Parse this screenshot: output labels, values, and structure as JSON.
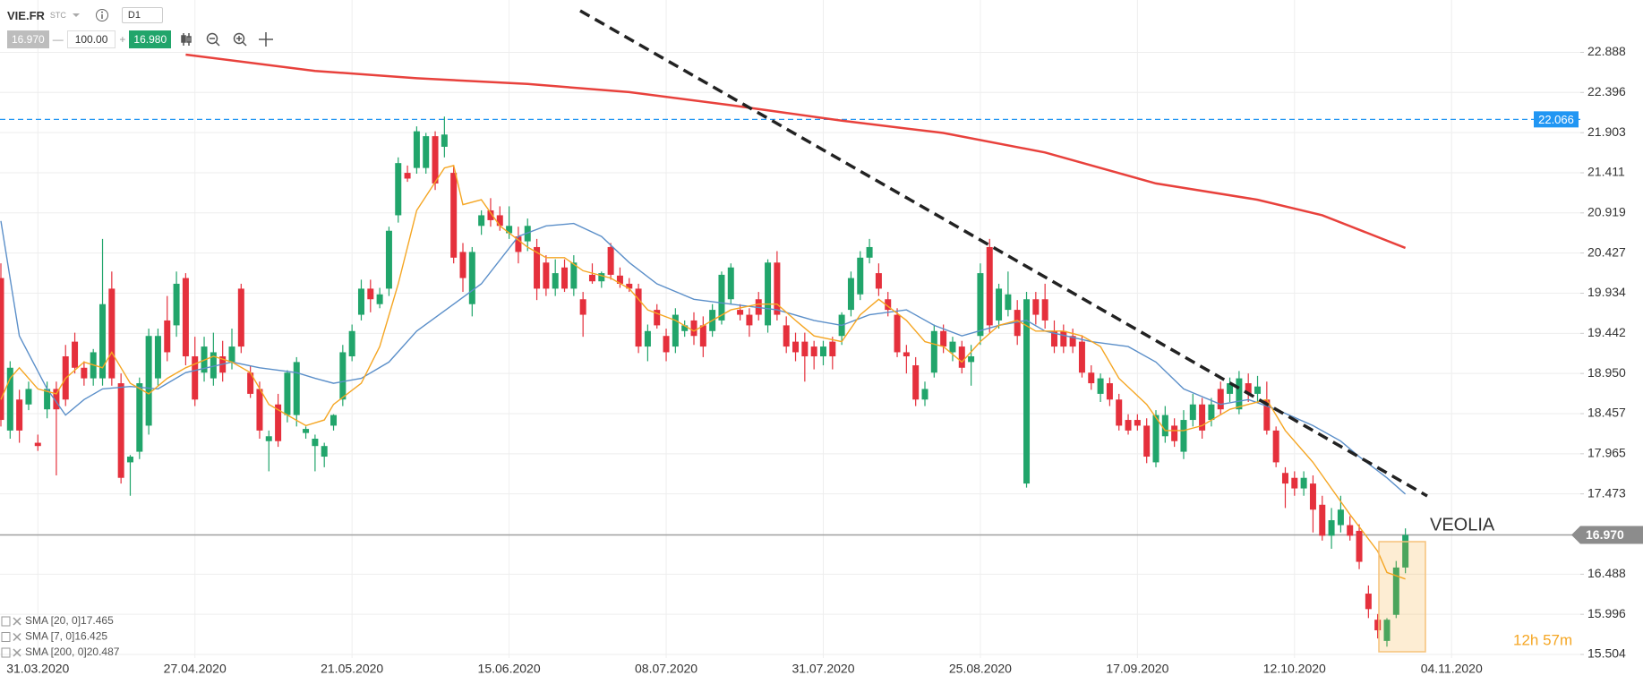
{
  "toolbar": {
    "symbol": "VIE.FR",
    "market": "STC",
    "interval": "D1",
    "bid": "16.970",
    "separator": "—",
    "volume": "100.00",
    "plus": "+",
    "ask": "16.980"
  },
  "chart_data": {
    "type": "candlestick",
    "title": "VEOLIA",
    "countdown": "12h 57m",
    "up_color": "#21a56b",
    "down_color": "#e5303c",
    "grid": true,
    "ylim": [
      15.46,
      23.53
    ],
    "yticks": [
      22.888,
      22.396,
      21.903,
      21.411,
      20.919,
      20.427,
      19.934,
      19.442,
      {
        "value": 18.95,
        "label": "18.950"
      },
      18.457,
      17.965,
      17.473,
      16.488,
      15.996,
      15.504
    ],
    "hlines": [
      {
        "value": 22.066,
        "color": "#2196f3"
      }
    ],
    "last_price": {
      "value": 16.97,
      "label": "16.970",
      "color": "#8c8c8c"
    },
    "categories": [
      null,
      null,
      null,
      null,
      "31.03.2020",
      null,
      null,
      null,
      null,
      null,
      null,
      null,
      null,
      null,
      null,
      null,
      null,
      null,
      null,
      null,
      null,
      "27.04.2020",
      null,
      null,
      null,
      null,
      null,
      null,
      null,
      null,
      null,
      null,
      null,
      null,
      null,
      null,
      null,
      null,
      "21.05.2020",
      null,
      null,
      null,
      null,
      null,
      null,
      null,
      null,
      null,
      null,
      null,
      null,
      null,
      null,
      null,
      null,
      "15.06.2020",
      null,
      null,
      null,
      null,
      null,
      null,
      null,
      null,
      null,
      null,
      null,
      null,
      null,
      null,
      null,
      null,
      "08.07.2020",
      null,
      null,
      null,
      null,
      null,
      null,
      null,
      null,
      null,
      null,
      null,
      null,
      null,
      null,
      null,
      null,
      "31.07.2020",
      null,
      null,
      null,
      null,
      null,
      null,
      null,
      null,
      null,
      null,
      null,
      null,
      null,
      null,
      null,
      null,
      "25.08.2020",
      null,
      null,
      null,
      null,
      null,
      null,
      null,
      null,
      null,
      null,
      null,
      null,
      null,
      null,
      null,
      null,
      "17.09.2020",
      null,
      null,
      null,
      null,
      null,
      null,
      null,
      null,
      null,
      null,
      null,
      null,
      null,
      null,
      null,
      null,
      "12.10.2020",
      null,
      null,
      null,
      null,
      null,
      null,
      null,
      null,
      null,
      null,
      null,
      null,
      null,
      null,
      null,
      null,
      "04.11.2020"
    ],
    "open": [
      20.12,
      18.25,
      18.63,
      18.57,
      18.1,
      18.51,
      18.76,
      19.16,
      19.34,
      19.02,
      18.89,
      18.89,
      19.99,
      18.83,
      17.86,
      17.99,
      18.31,
      18.89,
      19.6,
      19.54,
      20.12,
      19.16,
      18.96,
      18.89,
      19.16,
      19.09,
      19.99,
      18.96,
      18.76,
      18.12,
      18.57,
      18.44,
      18.44,
      18.22,
      18.06,
      17.93,
      18.31,
      18.63,
      19.16,
      19.67,
      19.99,
      19.8,
      19.99,
      20.89,
      21.41,
      21.47,
      21.47,
      21.86,
      21.73,
      21.41,
      20.44,
      19.8,
      20.76,
      20.95,
      20.89,
      20.67,
      20.63,
      20.57,
      20.5,
      20.31,
      19.99,
      20.25,
      19.99,
      19.86,
      20.16,
      20.08,
      20.5,
      20.15,
      20.05,
      19.99,
      19.28,
      19.73,
      19.41,
      19.28,
      19.47,
      19.6,
      19.54,
      19.47,
      19.6,
      19.86,
      19.73,
      19.67,
      19.86,
      19.54,
      20.31,
      19.54,
      19.34,
      19.34,
      19.28,
      19.16,
      19.34,
      19.41,
      19.73,
      19.92,
      20.37,
      20.18,
      19.86,
      19.67,
      19.21,
      19.05,
      18.63,
      18.96,
      19.47,
      19.21,
      19.28,
      19.09,
      19.41,
      20.5,
      19.6,
      19.73,
      19.73,
      17.6,
      19.86,
      19.86,
      19.47,
      19.47,
      19.41,
      19.34,
      18.96,
      18.7,
      18.83,
      18.63,
      18.38,
      18.38,
      18.31,
      17.86,
      18.18,
      18.31,
      17.99,
      18.38,
      18.57,
      18.38,
      18.76,
      18.7,
      18.51,
      18.83,
      18.7,
      18.63,
      18.25,
      17.73,
      17.67,
      17.54,
      17.6,
      17.34,
      16.96,
      17.09,
      17.09,
      17.02,
      16.25,
      15.93,
      15.67,
      15.99,
      16.57,
      null,
      null,
      null,
      null,
      null
    ],
    "high": [
      20.3,
      19.1,
      18.75,
      18.85,
      18.2,
      18.85,
      18.85,
      19.3,
      19.45,
      19.1,
      19.25,
      20.6,
      20.2,
      18.95,
      17.95,
      18.9,
      19.5,
      19.5,
      19.9,
      20.2,
      20.18,
      19.4,
      19.4,
      19.45,
      19.35,
      19.5,
      20.05,
      19.05,
      18.85,
      18.25,
      18.7,
      18.99,
      19.15,
      18.3,
      18.2,
      18.1,
      18.45,
      19.3,
      19.55,
      20.1,
      20.1,
      20.0,
      20.75,
      21.6,
      21.5,
      21.98,
      21.9,
      21.92,
      22.1,
      21.5,
      20.55,
      20.5,
      20.95,
      21.1,
      21.0,
      21.0,
      20.75,
      20.85,
      20.6,
      20.4,
      20.35,
      20.35,
      20.4,
      19.95,
      20.3,
      20.2,
      20.55,
      20.25,
      20.12,
      20.05,
      19.55,
      19.8,
      19.5,
      19.75,
      19.6,
      19.7,
      19.65,
      19.8,
      20.2,
      20.3,
      19.8,
      19.75,
      19.95,
      20.35,
      20.45,
      19.65,
      19.45,
      19.45,
      19.35,
      19.35,
      19.4,
      19.7,
      20.2,
      20.45,
      20.6,
      20.3,
      19.95,
      19.75,
      19.3,
      19.15,
      18.85,
      19.55,
      19.55,
      19.4,
      19.35,
      19.3,
      20.3,
      20.6,
      20.05,
      20.2,
      19.85,
      19.95,
      19.95,
      20.05,
      19.6,
      19.55,
      19.5,
      19.42,
      19.05,
      18.95,
      18.9,
      18.7,
      18.45,
      18.45,
      18.4,
      18.5,
      18.55,
      18.4,
      18.5,
      18.7,
      18.65,
      18.65,
      18.85,
      18.9,
      18.98,
      18.95,
      18.92,
      18.85,
      18.3,
      17.8,
      17.75,
      17.75,
      17.7,
      17.45,
      17.3,
      17.45,
      17.2,
      17.1,
      16.35,
      16.0,
      15.95,
      16.65,
      17.05,
      null,
      null,
      null,
      null,
      null
    ],
    "low": [
      18.3,
      18.15,
      18.1,
      18.5,
      18.0,
      18.4,
      17.7,
      18.55,
      18.95,
      18.8,
      18.8,
      18.8,
      18.8,
      17.6,
      17.45,
      17.9,
      18.2,
      18.8,
      19.1,
      19.4,
      19.05,
      18.55,
      18.85,
      18.8,
      18.85,
      19.0,
      19.2,
      18.65,
      18.15,
      17.75,
      18.05,
      18.35,
      18.3,
      18.15,
      17.75,
      17.8,
      18.25,
      18.55,
      19.1,
      19.6,
      19.7,
      19.75,
      19.9,
      20.8,
      21.3,
      21.4,
      21.4,
      21.2,
      21.6,
      20.3,
      19.95,
      19.65,
      20.65,
      20.75,
      20.7,
      20.6,
      20.3,
      20.45,
      19.85,
      19.9,
      19.9,
      19.95,
      19.9,
      19.4,
      20.05,
      20.0,
      20.1,
      20.0,
      19.95,
      19.2,
      19.1,
      19.5,
      19.1,
      19.2,
      19.4,
      19.3,
      19.15,
      19.4,
      19.55,
      19.8,
      19.6,
      19.4,
      19.6,
      19.45,
      19.6,
      19.2,
      19.1,
      18.85,
      19.0,
      19.05,
      19.0,
      19.3,
      19.65,
      19.85,
      20.3,
      19.9,
      19.65,
      19.15,
      18.95,
      18.55,
      18.55,
      18.9,
      19.2,
      19.1,
      18.95,
      18.8,
      19.3,
      19.45,
      19.5,
      19.65,
      19.3,
      17.55,
      19.55,
      19.5,
      19.2,
      19.2,
      19.2,
      18.9,
      18.75,
      18.6,
      18.55,
      18.25,
      18.2,
      18.25,
      17.85,
      17.8,
      18.1,
      18.05,
      17.9,
      18.3,
      18.15,
      18.3,
      18.45,
      18.6,
      18.45,
      18.6,
      18.6,
      18.2,
      17.8,
      17.3,
      17.45,
      17.45,
      17.0,
      16.9,
      16.8,
      17.0,
      16.9,
      16.55,
      15.95,
      15.7,
      15.6,
      15.95,
      16.5,
      null,
      null,
      null,
      null,
      null
    ],
    "close": [
      18.38,
      19.02,
      18.25,
      18.76,
      18.06,
      18.76,
      18.51,
      18.63,
      19.02,
      18.89,
      19.21,
      19.8,
      18.89,
      17.67,
      17.93,
      18.83,
      19.41,
      19.41,
      19.21,
      20.05,
      19.16,
      18.63,
      19.28,
      19.21,
      18.96,
      19.28,
      19.28,
      18.7,
      18.25,
      18.18,
      18.12,
      18.96,
      19.09,
      18.27,
      18.15,
      18.06,
      18.44,
      19.21,
      19.47,
      19.99,
      19.86,
      19.92,
      20.7,
      21.53,
      21.34,
      21.92,
      21.86,
      21.28,
      21.88,
      20.37,
      20.12,
      20.44,
      20.89,
      20.83,
      20.76,
      20.76,
      20.44,
      20.76,
      19.99,
      19.99,
      20.18,
      19.99,
      20.31,
      19.67,
      20.08,
      20.18,
      20.16,
      20.05,
      19.99,
      19.28,
      19.47,
      19.54,
      19.21,
      19.67,
      19.54,
      19.41,
      19.28,
      19.73,
      20.16,
      20.25,
      19.67,
      19.54,
      19.67,
      20.31,
      19.67,
      19.28,
      19.21,
      19.16,
      19.16,
      19.28,
      19.16,
      19.67,
      20.12,
      20.37,
      20.5,
      19.99,
      19.73,
      19.21,
      19.16,
      18.63,
      18.76,
      19.47,
      19.28,
      19.34,
      19.02,
      19.16,
      20.18,
      19.54,
      19.99,
      19.92,
      19.41,
      19.86,
      19.67,
      19.6,
      19.28,
      19.28,
      19.28,
      18.96,
      18.83,
      18.89,
      18.63,
      18.31,
      18.25,
      18.31,
      17.93,
      18.44,
      18.44,
      18.12,
      18.38,
      18.57,
      18.25,
      18.57,
      18.51,
      18.83,
      18.89,
      18.7,
      18.79,
      18.25,
      17.86,
      17.6,
      17.54,
      17.67,
      17.28,
      16.96,
      17.15,
      17.28,
      16.96,
      16.64,
      16.06,
      15.8,
      15.93,
      16.57,
      16.97,
      null,
      null,
      null,
      null,
      null
    ],
    "series": [
      {
        "name": "SMA [20, 0]",
        "last": 17.465,
        "color": "#5b8fc9",
        "x": [
          0,
          2,
          5,
          7,
          9,
          11,
          14,
          17,
          20,
          25,
          28,
          32,
          34,
          36,
          39,
          42,
          45,
          49,
          52,
          56,
          59,
          62,
          65,
          68,
          71,
          75,
          79,
          84,
          88,
          91,
          94,
          98,
          101,
          104,
          108,
          111,
          113,
          118,
          122,
          125,
          128,
          132,
          135,
          138,
          142,
          145,
          147,
          150,
          152
        ],
        "values": [
          20.82,
          19.41,
          18.76,
          18.44,
          18.63,
          18.76,
          18.79,
          18.76,
          18.96,
          19.09,
          19.02,
          18.96,
          18.89,
          18.83,
          18.89,
          19.09,
          19.47,
          19.8,
          20.05,
          20.63,
          20.76,
          20.79,
          20.63,
          20.31,
          20.05,
          19.86,
          19.8,
          19.73,
          19.6,
          19.54,
          19.67,
          19.73,
          19.54,
          19.41,
          19.54,
          19.6,
          19.47,
          19.34,
          19.28,
          19.09,
          18.76,
          18.57,
          18.63,
          18.51,
          18.31,
          18.12,
          17.93,
          17.67,
          17.47
        ]
      },
      {
        "name": "SMA [7, 0]",
        "last": 16.425,
        "color": "#f5a623",
        "x": [
          0,
          1,
          2,
          4,
          6,
          7,
          9,
          11,
          12,
          14,
          16,
          18,
          20,
          23,
          25,
          27,
          29,
          31,
          33,
          35,
          36,
          39,
          41,
          43,
          45,
          48,
          49,
          50,
          52,
          54,
          57,
          59,
          61,
          63,
          66,
          68,
          70,
          73,
          75,
          77,
          79,
          82,
          84,
          86,
          88,
          91,
          93,
          95,
          98,
          100,
          102,
          104,
          106,
          108,
          110,
          112,
          115,
          117,
          119,
          121,
          124,
          126,
          128,
          130,
          133,
          135,
          137,
          139,
          142,
          144,
          146,
          149,
          150,
          152
        ],
        "values": [
          18.63,
          18.89,
          19.02,
          18.76,
          18.7,
          18.89,
          19.09,
          19.02,
          19.21,
          18.83,
          18.7,
          18.89,
          19.02,
          19.16,
          19.09,
          18.96,
          18.57,
          18.44,
          18.31,
          18.38,
          18.57,
          18.83,
          19.28,
          20.05,
          20.95,
          21.47,
          21.5,
          21.02,
          21.08,
          20.76,
          20.5,
          20.37,
          20.37,
          20.21,
          20.12,
          19.99,
          19.73,
          19.6,
          19.47,
          19.6,
          19.73,
          19.8,
          19.8,
          19.6,
          19.41,
          19.34,
          19.67,
          19.86,
          19.6,
          19.34,
          19.28,
          19.09,
          19.34,
          19.54,
          19.6,
          19.47,
          19.47,
          19.41,
          19.28,
          18.89,
          18.57,
          18.25,
          18.25,
          18.31,
          18.51,
          18.57,
          18.63,
          18.25,
          17.86,
          17.54,
          17.22,
          16.77,
          16.51,
          16.43
        ]
      },
      {
        "name": "SMA [200, 0]",
        "last": 20.487,
        "color": "#e8413c",
        "x": [
          20,
          34,
          45,
          57,
          68,
          79,
          91,
          102,
          113,
          125,
          136,
          143,
          152
        ],
        "values": [
          22.86,
          22.66,
          22.57,
          22.5,
          22.4,
          22.24,
          22.05,
          21.9,
          21.66,
          21.28,
          21.08,
          20.89,
          20.49
        ]
      }
    ]
  }
}
